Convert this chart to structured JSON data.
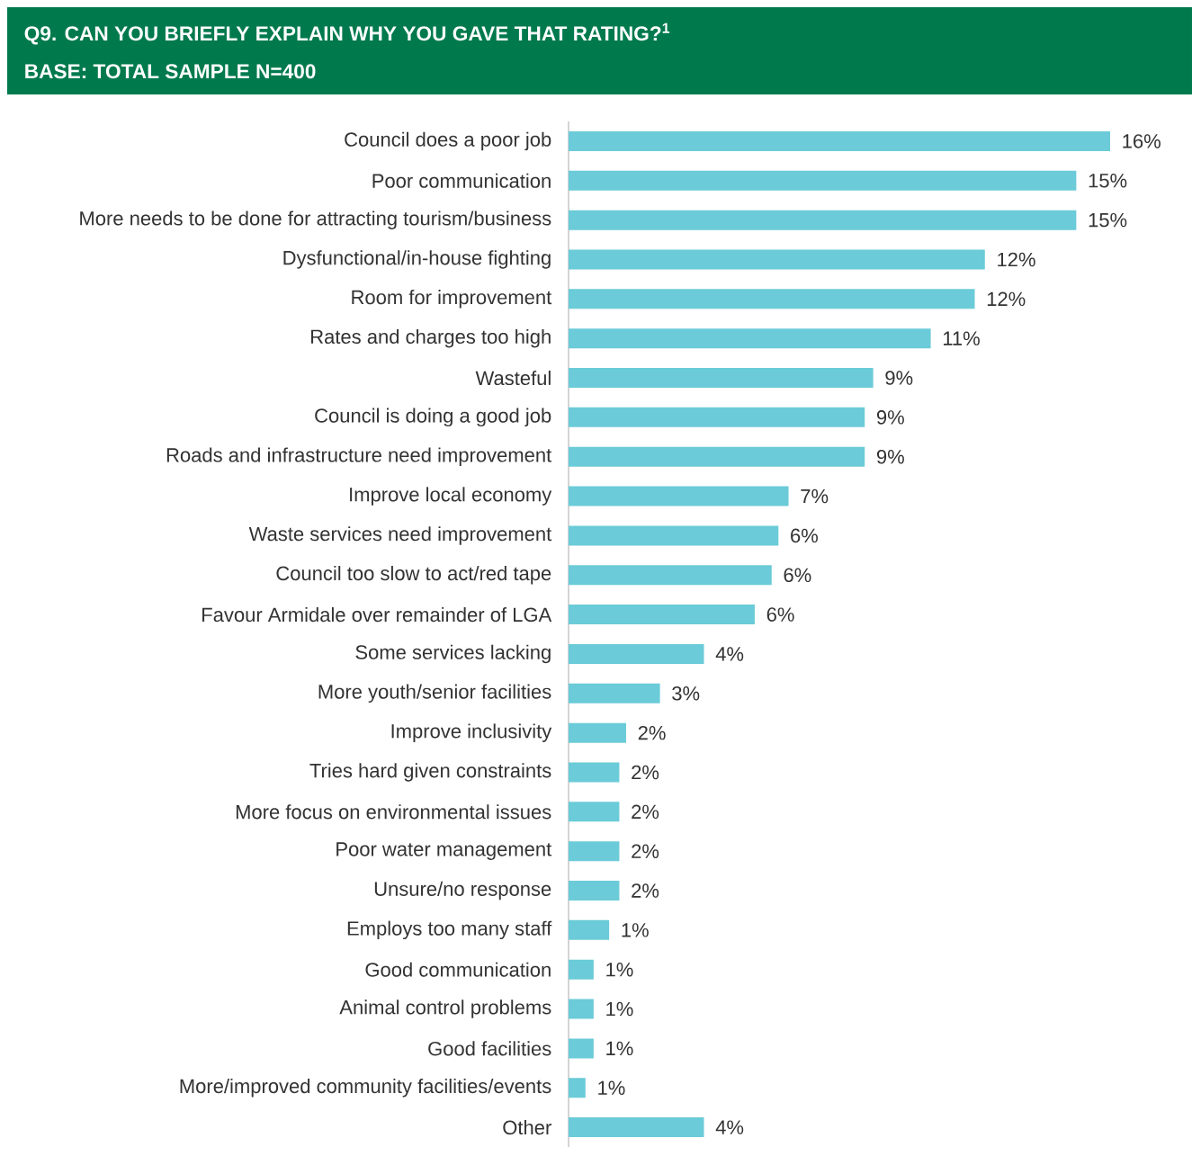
{
  "chart_data": {
    "type": "bar",
    "orientation": "horizontal",
    "title": "Q9. CAN YOU BRIEFLY EXPLAIN WHY YOU GAVE THAT RATING?$^{1}$",
    "subtitle": "BASE: TOTAL SAMPLE N=400",
    "categories": [
      "Council does a poor job",
      "Poor communication",
      "More needs to be done for attracting tourism/business",
      "Dysfunctional/in-house fighting",
      "Room for improvement",
      "Rates and charges too high",
      "Wasteful",
      "Council is doing a good job",
      "Roads and infrastructure need improvement",
      "Improve local economy",
      "Waste services need improvement",
      "Council too slow to act/red tape",
      "Favour Armidale over remainder of LGA",
      "Some services lacking",
      "More youth/senior facilities",
      "Improve inclusivity",
      "Tries hard given constraints",
      "More focus on environmental issues",
      "Poor water management",
      "Unsure/no response",
      "Employs too many staff",
      "Good communication",
      "Animal control problems",
      "Good facilities",
      "More/improved community facilities/events",
      "Other"
    ],
    "values": [
      16.0,
      15.0,
      15.0,
      12.3,
      12.0,
      10.7,
      9.0,
      8.75,
      8.75,
      6.5,
      6.2,
      6.0,
      5.5,
      4.0,
      2.7,
      1.7,
      1.5,
      1.5,
      1.5,
      1.5,
      1.2,
      0.74,
      0.74,
      0.74,
      0.5,
      4.0
    ],
    "value_labels": [
      "16%",
      "15%",
      "15%",
      "12%",
      "12%",
      "11%",
      "9%",
      "9%",
      "9%",
      "7%",
      "6%",
      "6%",
      "6%",
      "4%",
      "3%",
      "2%",
      "2%",
      "2%",
      "2%",
      "2%",
      "1%",
      "1%",
      "1%",
      "1%",
      "1%",
      "4%"
    ],
    "color": "#6bcbd8"
  }
}
